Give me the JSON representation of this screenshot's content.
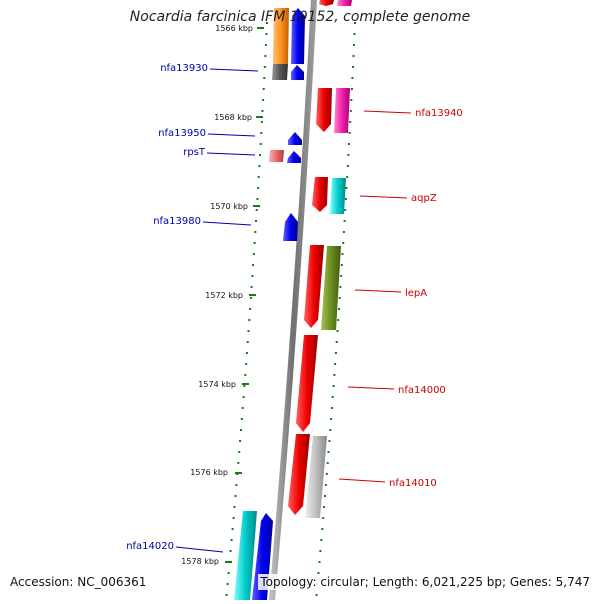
{
  "title": "Nocardia farcinica IFM 10152, complete genome",
  "footer": {
    "accession": "Accession: NC_006361",
    "stats": "Topology: circular; Length: 6,021,225 bp; Genes: 5,747"
  },
  "ruler": [
    {
      "label": "1566 kbp"
    },
    {
      "label": "1568 kbp"
    },
    {
      "label": "1570 kbp"
    },
    {
      "label": "1572 kbp"
    },
    {
      "label": "1574 kbp"
    },
    {
      "label": "1576 kbp"
    },
    {
      "label": "1578 kbp"
    }
  ],
  "genes_left": [
    {
      "label": "nfa13930",
      "color": "#0000aa"
    },
    {
      "label": "nfa13950",
      "color": "#0000aa"
    },
    {
      "label": "rpsT",
      "color": "#0000aa"
    },
    {
      "label": "nfa13980",
      "color": "#0000aa"
    },
    {
      "label": "nfa14020",
      "color": "#0000aa"
    }
  ],
  "genes_right": [
    {
      "label": "nfa13940",
      "color": "#cc0000"
    },
    {
      "label": "aqpZ",
      "color": "#cc0000"
    },
    {
      "label": "lepA",
      "color": "#cc0000"
    },
    {
      "label": "nfa14000",
      "color": "#cc0000"
    },
    {
      "label": "nfa14010",
      "color": "#cc0000"
    }
  ],
  "colors": {
    "backbone": "#808080",
    "ticks": "#1a7a1a",
    "forward_gene": "#ee0000",
    "reverse_gene": "#0000ee"
  }
}
